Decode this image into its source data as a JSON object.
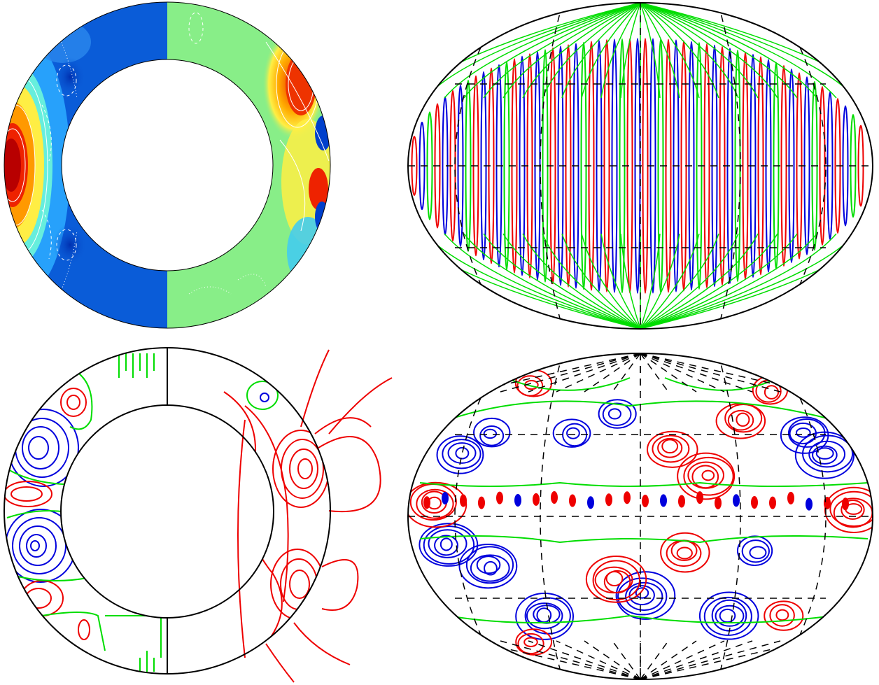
{
  "figure": {
    "panels": [
      {
        "id": "top-left",
        "kind": "meridional-section",
        "style": "filled-contours"
      },
      {
        "id": "top-right",
        "kind": "hammer-projection",
        "style": "line-contours"
      },
      {
        "id": "bottom-left",
        "kind": "meridional-section",
        "style": "line-contours-with-field-lines"
      },
      {
        "id": "bottom-right",
        "kind": "hammer-projection",
        "style": "line-contours"
      }
    ],
    "colors": {
      "positive": "#ee0000",
      "negative": "#0000dd",
      "zero": "#00dd00",
      "outline": "#000000",
      "fill_low": "#0a5cd8",
      "fill_mid": "#88ee88",
      "fill_high": "#cc0000"
    }
  }
}
